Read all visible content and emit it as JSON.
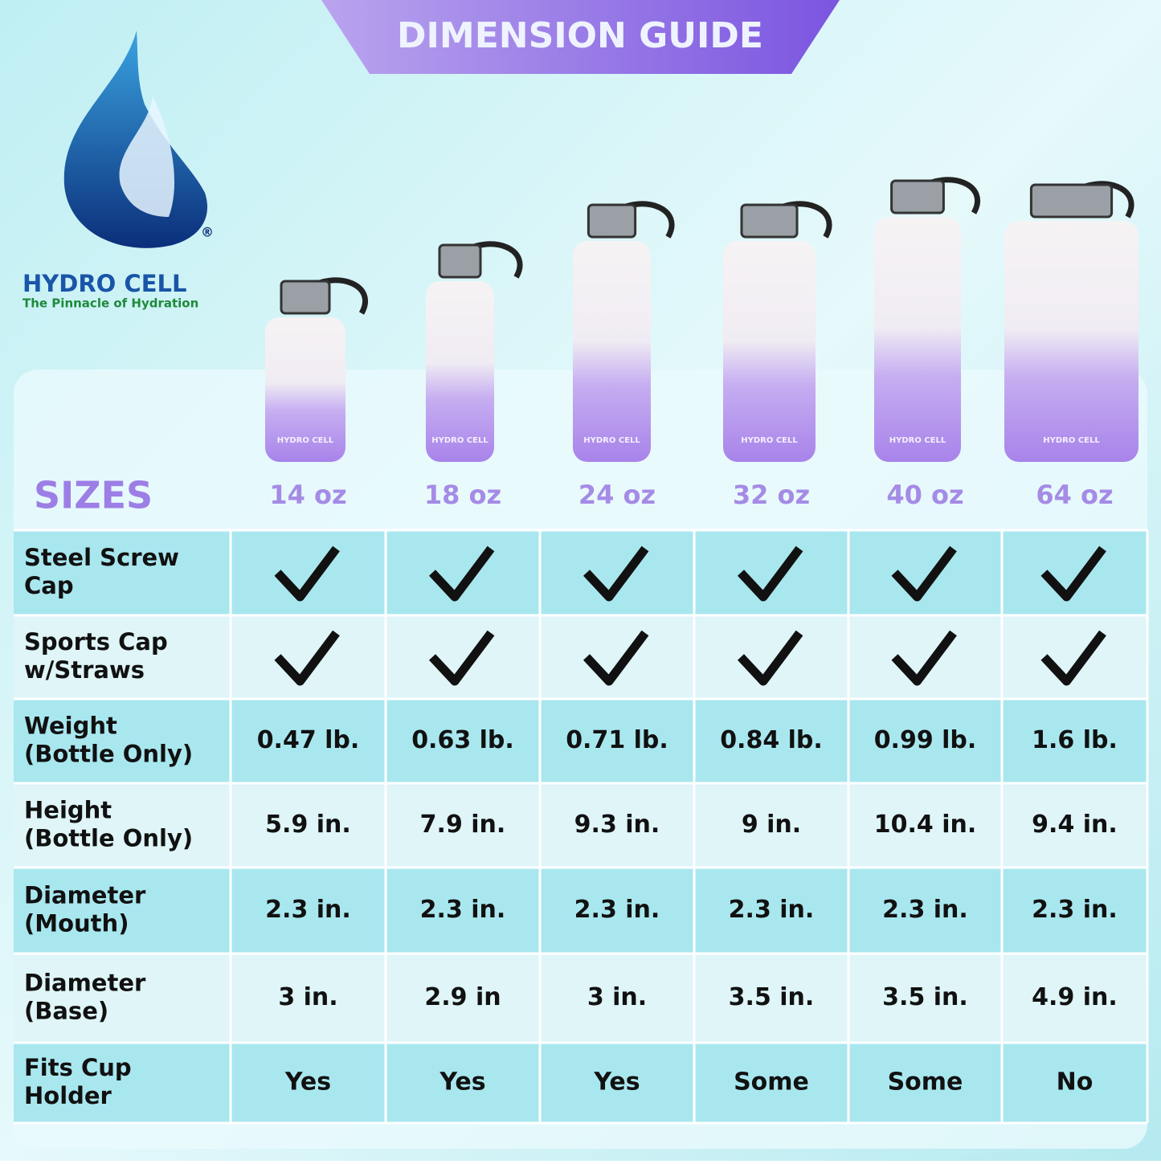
{
  "header": {
    "title": "DIMENSION GUIDE"
  },
  "brand": {
    "name": "HYDRO CELL",
    "tagline": "The Pinnacle of Hydration",
    "mark": "®",
    "bottle_text": "HYDRO CELL"
  },
  "table": {
    "sizes_label": "SIZES",
    "columns": [
      "14 oz",
      "18 oz",
      "24 oz",
      "32 oz",
      "40 oz",
      "64 oz"
    ],
    "rows": [
      {
        "label": [
          "Steel Screw",
          "Cap"
        ],
        "cells": [
          true,
          true,
          true,
          true,
          true,
          true
        ]
      },
      {
        "label": [
          "Sports Cap",
          "w/Straws"
        ],
        "cells": [
          true,
          true,
          true,
          true,
          true,
          true
        ]
      },
      {
        "label": [
          "Weight",
          "(Bottle Only)"
        ],
        "cells": [
          "0.47 lb.",
          "0.63 lb.",
          "0.71 lb.",
          "0.84 lb.",
          "0.99 lb.",
          "1.6 lb."
        ]
      },
      {
        "label": [
          "Height",
          "(Bottle Only)"
        ],
        "cells": [
          "5.9 in.",
          "7.9 in.",
          "9.3 in.",
          "9 in.",
          "10.4 in.",
          "9.4 in."
        ]
      },
      {
        "label": [
          "Diameter",
          "(Mouth)"
        ],
        "cells": [
          "2.3 in.",
          "2.3 in.",
          "2.3 in.",
          "2.3 in.",
          "2.3 in.",
          "2.3 in."
        ]
      },
      {
        "label": [
          "Diameter",
          "(Base)"
        ],
        "cells": [
          "3 in.",
          "2.9 in",
          "3 in.",
          "3.5 in.",
          "3.5 in.",
          "4.9 in."
        ]
      },
      {
        "label": [
          "Fits Cup",
          "Holder"
        ],
        "cells": [
          "Yes",
          "Yes",
          "Yes",
          "Some",
          "Some",
          "No"
        ]
      }
    ]
  }
}
